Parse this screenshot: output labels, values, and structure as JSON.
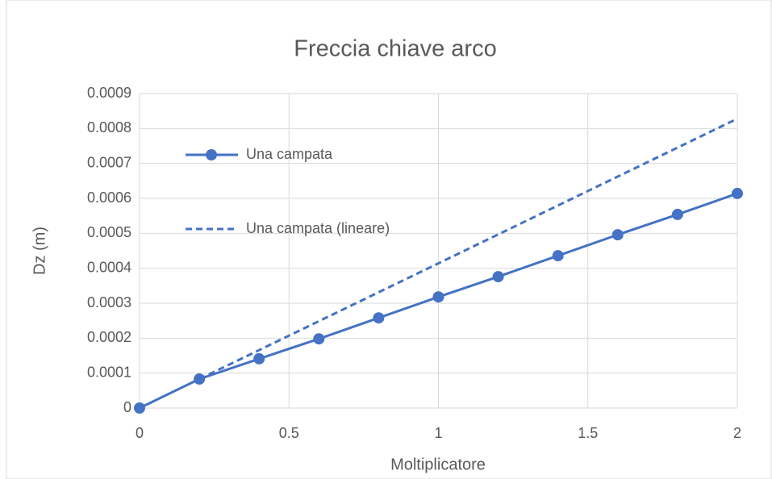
{
  "chart_data": {
    "type": "line",
    "title": "Freccia chiave arco",
    "x_label": "Moltiplicatore",
    "y_label": "Dz (m)",
    "series": [
      {
        "name": "Una campata",
        "color": "#4472c4",
        "style": "solid",
        "markers": true,
        "x": [
          0,
          0.2,
          0.4,
          0.6,
          0.8,
          1,
          1.2,
          1.4,
          1.6,
          1.8,
          2
        ],
        "values": [
          0,
          8.3e-05,
          0.000141,
          0.000198,
          0.000258,
          0.000318,
          0.000376,
          0.000436,
          0.000496,
          0.000554,
          0.000614
        ]
      },
      {
        "name": "Una campata (lineare)",
        "color": "#4472c4",
        "style": "dashed",
        "markers": false,
        "x": [
          0.2,
          2
        ],
        "values": [
          8.3e-05,
          0.000828
        ]
      }
    ],
    "xlim": [
      0,
      2
    ],
    "xticks": [
      0,
      0.5,
      1,
      1.5,
      2
    ],
    "ylim": [
      0,
      0.0009
    ],
    "yticks": [
      0,
      0.0001,
      0.0002,
      0.0003,
      0.0004,
      0.0005,
      0.0006,
      0.0007,
      0.0008,
      0.0009
    ],
    "grid": true,
    "legend": "upper left"
  }
}
